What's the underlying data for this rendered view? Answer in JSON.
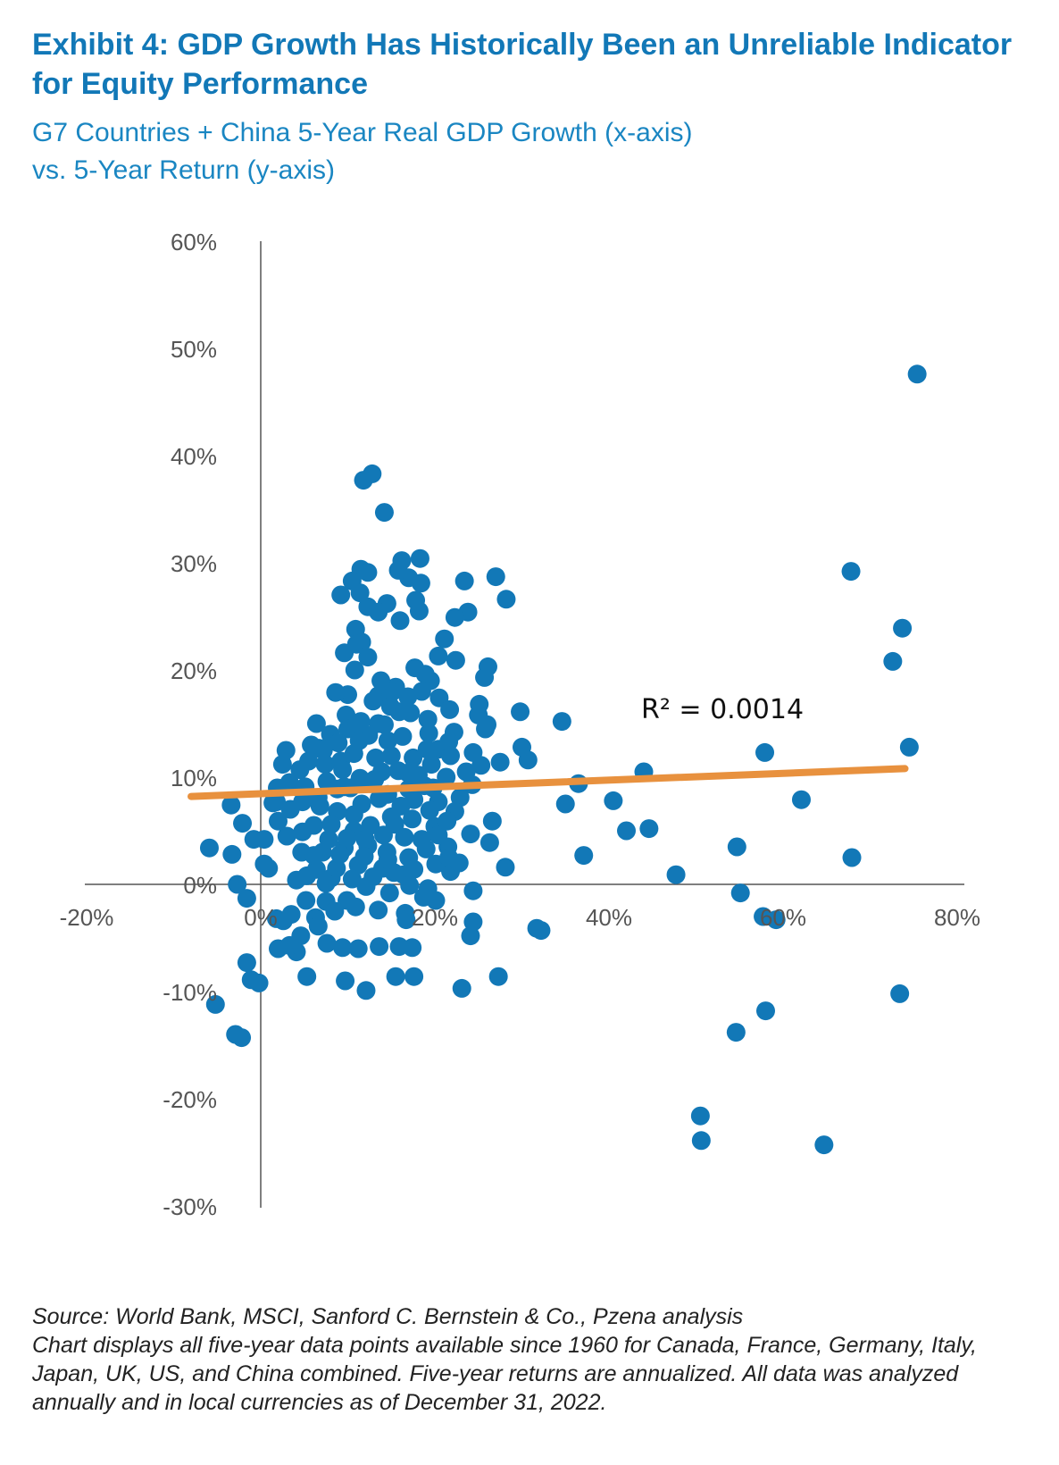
{
  "title": "Exhibit 4: GDP Growth Has Historically Been an Unreliable Indicator for Equity Performance",
  "subtitle_line1": "G7 Countries + China 5-Year Real GDP Growth (x-axis)",
  "subtitle_line2": "vs. 5-Year Return (y-axis)",
  "source": "Source: World Bank, MSCI, Sanford C. Bernstein & Co., Pzena analysis",
  "note": "Chart displays all five-year data points available since 1960 for Canada, France, Germany, Italy, Japan, UK, US, and China combined. Five-year returns are annualized. All data was analyzed annually and in local currencies as of December 31, 2022.",
  "chart_data": {
    "type": "scatter",
    "title": "",
    "xlabel": "",
    "ylabel": "",
    "xlim": [
      -20,
      80
    ],
    "ylim": [
      -30,
      60
    ],
    "x_ticks": [
      -20,
      0,
      20,
      40,
      60,
      80
    ],
    "y_ticks": [
      -30,
      -20,
      -10,
      0,
      10,
      20,
      30,
      40,
      50,
      60
    ],
    "x_tick_labels": [
      "-20%",
      "0%",
      "20%",
      "40%",
      "60%",
      "80%"
    ],
    "y_tick_labels": [
      "-30%",
      "-20%",
      "-10%",
      "0%",
      "10%",
      "20%",
      "30%",
      "40%",
      "50%",
      "60%"
    ],
    "grid": false,
    "legend": "none",
    "point_color": "#1278b7",
    "trendline_color": "#e8913e",
    "trendline": {
      "x": [
        -8,
        74
      ],
      "y": [
        8.2,
        10.8
      ],
      "label": "R² = 0.0014"
    },
    "points": [
      [
        75.4,
        47.6
      ],
      [
        67.8,
        29.2
      ],
      [
        73.7,
        23.9
      ],
      [
        72.6,
        20.8
      ],
      [
        74.5,
        12.8
      ],
      [
        67.9,
        2.5
      ],
      [
        73.4,
        -10.2
      ],
      [
        64.7,
        -24.3
      ],
      [
        57.9,
        12.3
      ],
      [
        62.1,
        7.9
      ],
      [
        58.0,
        -11.8
      ],
      [
        59.2,
        -3.3
      ],
      [
        57.7,
        -3.0
      ],
      [
        54.7,
        3.5
      ],
      [
        55.1,
        -0.8
      ],
      [
        54.6,
        -13.8
      ],
      [
        50.5,
        -21.6
      ],
      [
        50.6,
        -23.9
      ],
      [
        47.7,
        0.9
      ],
      [
        44.0,
        10.5
      ],
      [
        44.6,
        5.2
      ],
      [
        42.0,
        5.0
      ],
      [
        40.5,
        7.8
      ],
      [
        36.5,
        9.4
      ],
      [
        35.0,
        7.5
      ],
      [
        37.1,
        2.7
      ],
      [
        34.6,
        15.2
      ],
      [
        27.0,
        28.7
      ],
      [
        28.2,
        26.6
      ],
      [
        30.7,
        11.6
      ],
      [
        29.8,
        16.1
      ],
      [
        30.0,
        12.8
      ],
      [
        27.5,
        11.4
      ],
      [
        26.6,
        5.9
      ],
      [
        28.1,
        1.6
      ],
      [
        26.3,
        3.9
      ],
      [
        32.2,
        -4.3
      ],
      [
        31.7,
        -4.1
      ],
      [
        27.3,
        -8.6
      ],
      [
        23.1,
        -9.7
      ],
      [
        26.1,
        20.3
      ],
      [
        25.7,
        19.3
      ],
      [
        25.0,
        15.8
      ],
      [
        25.8,
        14.5
      ],
      [
        24.4,
        12.3
      ],
      [
        24.3,
        9.3
      ],
      [
        24.1,
        4.7
      ],
      [
        24.4,
        -0.6
      ],
      [
        24.4,
        -3.5
      ],
      [
        24.1,
        -4.8
      ],
      [
        23.8,
        25.4
      ],
      [
        22.3,
        24.9
      ],
      [
        23.4,
        28.3
      ],
      [
        21.1,
        22.9
      ],
      [
        22.4,
        20.9
      ],
      [
        20.4,
        21.3
      ],
      [
        19.5,
        19.0
      ],
      [
        20.5,
        17.4
      ],
      [
        21.7,
        16.3
      ],
      [
        22.2,
        14.2
      ],
      [
        21.6,
        13.3
      ],
      [
        20.4,
        12.6
      ],
      [
        21.3,
        10.0
      ],
      [
        20.4,
        7.7
      ],
      [
        21.5,
        3.5
      ],
      [
        21.8,
        1.2
      ],
      [
        20.0,
        5.4
      ],
      [
        20.1,
        -1.5
      ],
      [
        18.3,
        30.4
      ],
      [
        18.4,
        28.1
      ],
      [
        17.0,
        28.6
      ],
      [
        17.8,
        26.5
      ],
      [
        18.2,
        25.5
      ],
      [
        16.2,
        30.2
      ],
      [
        15.8,
        29.3
      ],
      [
        16.0,
        24.6
      ],
      [
        14.5,
        26.2
      ],
      [
        14.2,
        34.7
      ],
      [
        12.8,
        38.3
      ],
      [
        11.8,
        37.7
      ],
      [
        11.5,
        29.4
      ],
      [
        12.3,
        29.1
      ],
      [
        10.5,
        28.3
      ],
      [
        11.4,
        27.2
      ],
      [
        9.2,
        27.0
      ],
      [
        12.3,
        25.9
      ],
      [
        13.5,
        25.4
      ],
      [
        10.9,
        23.8
      ],
      [
        11.6,
        22.6
      ],
      [
        9.6,
        21.6
      ],
      [
        11.0,
        22.4
      ],
      [
        12.3,
        21.2
      ],
      [
        10.8,
        20.0
      ],
      [
        13.5,
        17.6
      ],
      [
        15.5,
        18.4
      ],
      [
        17.7,
        20.2
      ],
      [
        18.9,
        19.6
      ],
      [
        18.5,
        18.0
      ],
      [
        15.0,
        17.9
      ],
      [
        12.9,
        17.1
      ],
      [
        10.0,
        17.7
      ],
      [
        8.6,
        17.9
      ],
      [
        9.8,
        15.8
      ],
      [
        11.5,
        15.2
      ],
      [
        13.5,
        15.0
      ],
      [
        15.9,
        16.1
      ],
      [
        17.2,
        16.0
      ],
      [
        19.2,
        15.4
      ],
      [
        16.3,
        13.8
      ],
      [
        14.6,
        13.4
      ],
      [
        12.4,
        13.9
      ],
      [
        10.0,
        14.5
      ],
      [
        8.0,
        14.0
      ],
      [
        6.4,
        15.0
      ],
      [
        6.7,
        12.7
      ],
      [
        5.5,
        11.5
      ],
      [
        7.4,
        11.2
      ],
      [
        9.2,
        11.5
      ],
      [
        10.7,
        12.2
      ],
      [
        13.2,
        11.8
      ],
      [
        15.0,
        12.0
      ],
      [
        17.5,
        11.8
      ],
      [
        19.6,
        11.2
      ],
      [
        18.1,
        10.2
      ],
      [
        15.8,
        10.6
      ],
      [
        13.1,
        9.8
      ],
      [
        11.4,
        9.9
      ],
      [
        9.6,
        9.1
      ],
      [
        7.6,
        9.6
      ],
      [
        5.1,
        9.1
      ],
      [
        3.3,
        9.5
      ],
      [
        1.8,
        7.7
      ],
      [
        3.4,
        7.0
      ],
      [
        4.8,
        7.7
      ],
      [
        6.8,
        7.3
      ],
      [
        8.8,
        6.8
      ],
      [
        11.6,
        7.5
      ],
      [
        13.6,
        8.0
      ],
      [
        16.1,
        7.3
      ],
      [
        17.6,
        7.9
      ],
      [
        15.0,
        6.3
      ],
      [
        12.6,
        5.5
      ],
      [
        10.7,
        5.0
      ],
      [
        8.1,
        5.6
      ],
      [
        6.1,
        5.5
      ],
      [
        4.8,
        4.9
      ],
      [
        3.0,
        4.5
      ],
      [
        2.0,
        5.9
      ],
      [
        4.7,
        3.0
      ],
      [
        7.1,
        3.0
      ],
      [
        9.6,
        3.4
      ],
      [
        12.3,
        3.6
      ],
      [
        14.5,
        3.0
      ],
      [
        17.0,
        2.5
      ],
      [
        19.0,
        3.3
      ],
      [
        16.4,
        0.9
      ],
      [
        14.0,
        1.5
      ],
      [
        11.2,
        1.8
      ],
      [
        8.7,
        1.5
      ],
      [
        6.4,
        1.4
      ],
      [
        4.1,
        0.4
      ],
      [
        5.2,
        -1.5
      ],
      [
        7.5,
        -1.6
      ],
      [
        9.9,
        -1.5
      ],
      [
        12.1,
        -0.2
      ],
      [
        14.8,
        -0.8
      ],
      [
        17.1,
        -0.1
      ],
      [
        19.2,
        -0.4
      ],
      [
        18.7,
        -1.2
      ],
      [
        16.6,
        -2.7
      ],
      [
        13.5,
        -2.4
      ],
      [
        10.9,
        -2.1
      ],
      [
        8.5,
        -2.5
      ],
      [
        6.3,
        -3.1
      ],
      [
        3.5,
        -2.8
      ],
      [
        2.6,
        -3.4
      ],
      [
        1.8,
        -3.2
      ],
      [
        4.6,
        -4.8
      ],
      [
        6.6,
        -3.9
      ],
      [
        7.6,
        -5.5
      ],
      [
        9.4,
        -5.9
      ],
      [
        11.2,
        -6.0
      ],
      [
        13.6,
        -5.8
      ],
      [
        15.9,
        -5.8
      ],
      [
        16.7,
        -3.3
      ],
      [
        17.4,
        -5.9
      ],
      [
        17.6,
        -8.6
      ],
      [
        15.5,
        -8.6
      ],
      [
        12.1,
        -9.9
      ],
      [
        9.7,
        -9.0
      ],
      [
        4.1,
        -6.3
      ],
      [
        2.0,
        -6.0
      ],
      [
        3.3,
        -5.7
      ],
      [
        5.3,
        -8.6
      ],
      [
        -1.6,
        -7.3
      ],
      [
        -1.1,
        -8.9
      ],
      [
        -0.2,
        -9.2
      ],
      [
        -2.9,
        -14.0
      ],
      [
        -2.2,
        -14.3
      ],
      [
        -5.2,
        -11.2
      ],
      [
        -5.9,
        3.4
      ],
      [
        -3.3,
        2.8
      ],
      [
        -0.8,
        4.2
      ],
      [
        0.4,
        1.9
      ],
      [
        0.9,
        1.5
      ],
      [
        -2.1,
        5.7
      ],
      [
        -3.4,
        7.4
      ],
      [
        -2.7,
        0.0
      ],
      [
        -1.6,
        -1.3
      ],
      [
        0.4,
        4.2
      ],
      [
        1.4,
        7.6
      ],
      [
        1.9,
        9.0
      ],
      [
        2.5,
        11.2
      ],
      [
        2.9,
        12.5
      ],
      [
        4.5,
        10.7
      ],
      [
        6.6,
        8.1
      ],
      [
        8.8,
        8.9
      ],
      [
        10.3,
        9.0
      ],
      [
        12.6,
        9.4
      ],
      [
        14.6,
        8.4
      ],
      [
        17.0,
        8.9
      ],
      [
        19.8,
        9.0
      ],
      [
        22.9,
        8.1
      ],
      [
        22.3,
        6.8
      ],
      [
        20.4,
        4.6
      ],
      [
        18.5,
        4.2
      ],
      [
        16.5,
        4.4
      ],
      [
        14.1,
        4.6
      ],
      [
        12.0,
        4.2
      ],
      [
        9.9,
        4.3
      ],
      [
        7.8,
        4.2
      ],
      [
        6.1,
        2.7
      ],
      [
        8.1,
        0.6
      ],
      [
        10.5,
        0.5
      ],
      [
        12.9,
        0.7
      ],
      [
        15.3,
        1.1
      ],
      [
        17.6,
        1.4
      ],
      [
        20.1,
        1.9
      ],
      [
        21.6,
        2.5
      ],
      [
        22.8,
        2.0
      ],
      [
        13.8,
        19.0
      ],
      [
        16.9,
        17.5
      ],
      [
        19.3,
        14.1
      ],
      [
        14.2,
        14.9
      ],
      [
        11.3,
        13.4
      ],
      [
        8.9,
        13.2
      ],
      [
        7.2,
        12.5
      ],
      [
        5.8,
        13.0
      ],
      [
        13.9,
        10.5
      ],
      [
        16.9,
        10.4
      ],
      [
        18.8,
        9.2
      ],
      [
        9.4,
        10.7
      ],
      [
        10.7,
        6.5
      ],
      [
        15.4,
        5.6
      ],
      [
        17.4,
        6.1
      ],
      [
        19.4,
        6.9
      ],
      [
        21.4,
        5.9
      ],
      [
        11.9,
        2.6
      ],
      [
        9.1,
        2.8
      ],
      [
        7.5,
        0.1
      ],
      [
        5.3,
        0.8
      ],
      [
        14.6,
        2.3
      ],
      [
        11.1,
        15.0
      ],
      [
        14.9,
        16.6
      ],
      [
        19.1,
        12.6
      ],
      [
        21.8,
        12.0
      ],
      [
        23.6,
        10.5
      ],
      [
        25.3,
        11.1
      ],
      [
        26.0,
        14.9
      ],
      [
        25.1,
        16.8
      ]
    ]
  }
}
